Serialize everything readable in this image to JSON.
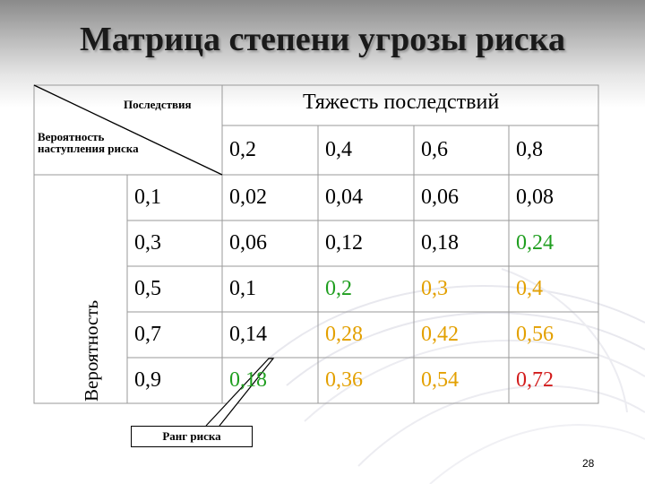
{
  "title": "Матрица степени угрозы риска",
  "header": {
    "consequences_label": "Последствия",
    "probability_label": "Вероятность наступления риска",
    "severity_heading": "Тяжесть последствий",
    "probability_axis": "Вероятность"
  },
  "severity_values": [
    "0,2",
    "0,4",
    "0,6",
    "0,8"
  ],
  "rows": [
    {
      "probability": "0,1",
      "values": [
        "0,02",
        "0,04",
        "0,06",
        "0,08"
      ],
      "colors": [
        "#000000",
        "#000000",
        "#000000",
        "#000000"
      ]
    },
    {
      "probability": "0,3",
      "values": [
        "0,06",
        "0,12",
        "0,18",
        "0,24"
      ],
      "colors": [
        "#000000",
        "#000000",
        "#000000",
        "#1f9e1f"
      ]
    },
    {
      "probability": "0,5",
      "values": [
        "0,1",
        "0,2",
        "0,3",
        "0,4"
      ],
      "colors": [
        "#000000",
        "#1f9e1f",
        "#e3a000",
        "#e3a000"
      ]
    },
    {
      "probability": "0,7",
      "values": [
        "0,14",
        "0,28",
        "0,42",
        "0,56"
      ],
      "colors": [
        "#000000",
        "#e3a000",
        "#e3a000",
        "#e3a000"
      ]
    },
    {
      "probability": "0,9",
      "values": [
        "0,18",
        "0,36",
        "0,54",
        "0,72"
      ],
      "colors": [
        "#1f9e1f",
        "#e3a000",
        "#e3a000",
        "#d21c1c"
      ]
    }
  ],
  "callout_label": "Ранг риска",
  "page_number": "28"
}
